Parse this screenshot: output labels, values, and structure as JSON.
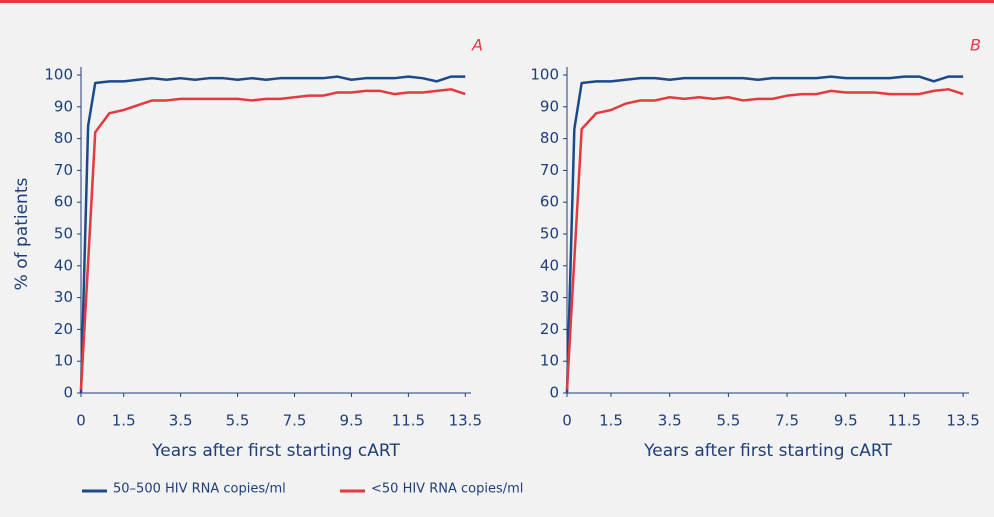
{
  "chart_data": [
    {
      "type": "line",
      "panel": "A",
      "ylabel": "% of patients",
      "xlabel": "Years after first starting cART",
      "x": [
        0,
        0.25,
        0.5,
        1,
        1.5,
        2,
        2.5,
        3,
        3.5,
        4,
        4.5,
        5,
        5.5,
        6,
        6.5,
        7,
        7.5,
        8,
        8.5,
        9,
        9.5,
        10,
        10.5,
        11,
        11.5,
        12,
        12.5,
        13,
        13.5
      ],
      "series": [
        {
          "name": "50–500 HIV RNA copies/ml",
          "color": "#1b4a8a",
          "values": [
            0,
            84,
            97.5,
            98,
            98,
            98.5,
            99,
            98.5,
            99,
            98.5,
            99,
            99,
            98.5,
            99,
            98.5,
            99,
            99,
            99,
            99,
            99.5,
            98.5,
            99,
            99,
            99,
            99.5,
            99,
            98,
            99.5,
            99.5
          ]
        },
        {
          "name": "<50 HIV RNA copies/ml",
          "color": "#e23a3f",
          "values": [
            1,
            41,
            82,
            88,
            89,
            90.5,
            92,
            92,
            92.5,
            92.5,
            92.5,
            92.5,
            92.5,
            92,
            92.5,
            92.5,
            93,
            93.5,
            93.5,
            94.5,
            94.5,
            95,
            95,
            94,
            94.5,
            94.5,
            95,
            95.5,
            94
          ]
        }
      ],
      "xlim": [
        0,
        13.7
      ],
      "ylim": [
        0,
        100
      ],
      "xticks": [
        0,
        1.5,
        3.5,
        5.5,
        7.5,
        9.5,
        11.5,
        13.5
      ],
      "yticks": [
        0,
        10,
        20,
        30,
        40,
        50,
        60,
        70,
        80,
        90,
        100
      ]
    },
    {
      "type": "line",
      "panel": "B",
      "xlabel": "Years after first starting cART",
      "x": [
        0,
        0.25,
        0.5,
        1,
        1.5,
        2,
        2.5,
        3,
        3.5,
        4,
        4.5,
        5,
        5.5,
        6,
        6.5,
        7,
        7.5,
        8,
        8.5,
        9,
        9.5,
        10,
        10.5,
        11,
        11.5,
        12,
        12.5,
        13,
        13.5
      ],
      "series": [
        {
          "color": "#1b4a8a",
          "values": [
            0,
            83,
            97.5,
            98,
            98,
            98.5,
            99,
            99,
            98.5,
            99,
            99,
            99,
            99,
            99,
            98.5,
            99,
            99,
            99,
            99,
            99.5,
            99,
            99,
            99,
            99,
            99.5,
            99.5,
            98,
            99.5,
            99.5
          ]
        },
        {
          "color": "#e23a3f",
          "values": [
            1,
            42,
            83,
            88,
            89,
            91,
            92,
            92,
            93,
            92.5,
            93,
            92.5,
            93,
            92,
            92.5,
            92.5,
            93.5,
            94,
            94,
            95,
            94.5,
            94.5,
            94.5,
            94,
            94,
            94,
            95,
            95.5,
            94
          ]
        }
      ],
      "xlim": [
        0,
        13.7
      ],
      "ylim": [
        0,
        100
      ],
      "xticks": [
        0,
        1.5,
        3.5,
        5.5,
        7.5,
        9.5,
        11.5,
        13.5
      ],
      "yticks": [
        0,
        10,
        20,
        30,
        40,
        50,
        60,
        70,
        80,
        90,
        100
      ]
    }
  ]
}
